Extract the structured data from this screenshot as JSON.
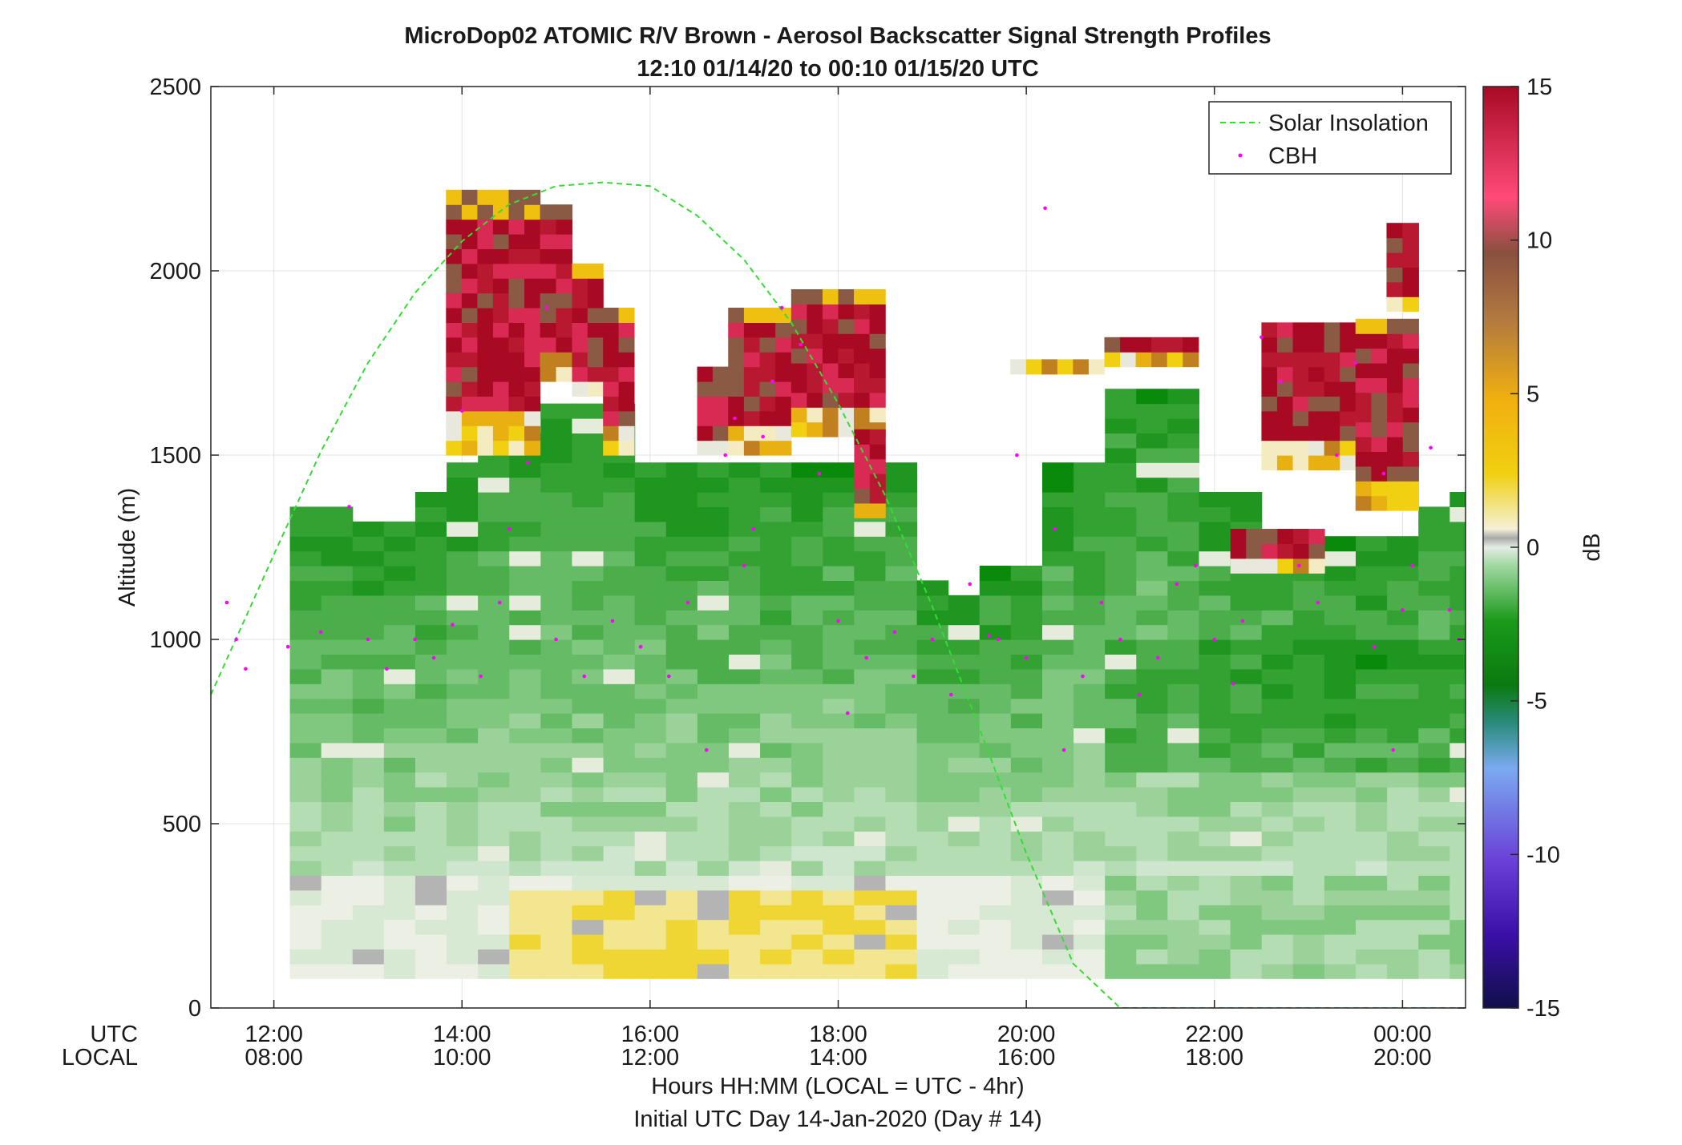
{
  "chart_data": {
    "type": "heatmap",
    "title": "MicroDop02 ATOMIC R/V Brown - Aerosol Backscatter Signal Strength Profiles",
    "subtitle": "12:10 01/14/20 to 00:10 01/15/20  UTC",
    "ylabel": "Altitude (m)",
    "ylim": [
      0,
      2500
    ],
    "yticks": [
      "0",
      "500",
      "1000",
      "1500",
      "2000",
      "2500"
    ],
    "xlim_hours_utc": [
      11.33,
      24.67
    ],
    "xtick_labels_utc": [
      "12:00",
      "14:00",
      "16:00",
      "18:00",
      "20:00",
      "22:00",
      "00:00"
    ],
    "xtick_labels_local": [
      "08:00",
      "10:00",
      "12:00",
      "14:00",
      "16:00",
      "18:00",
      "20:00"
    ],
    "xaxis_row_labels": [
      "UTC",
      "LOCAL"
    ],
    "xlabel_line1": "Hours HH:MM  (LOCAL = UTC - 4hr)",
    "xlabel_line2": "Initial UTC Day 14-Jan-2020 (Day # 14)",
    "grid": true,
    "legend": {
      "placement": "top-right",
      "entries": [
        "Solar Insolation",
        "CBH"
      ]
    },
    "colorbar": {
      "label": "dB",
      "range": [
        -15,
        15
      ],
      "ticks": [
        "-15",
        "-10",
        "-5",
        "0",
        "5",
        "10",
        "15"
      ]
    },
    "profile_columns": {
      "start_hour_utc": 12.17,
      "step_hours": 0.3333,
      "bottom_altitude_m": 80,
      "cell_height_m": 40,
      "top_altitude_m": [
        1350,
        1350,
        1320,
        1320,
        1400,
        1450,
        1620,
        1620,
        1620,
        1620,
        1620,
        1480,
        1480,
        1480,
        1480,
        1480,
        1480,
        1480,
        1480,
        1480,
        1140,
        1120,
        1180,
        1180,
        1450,
        1480,
        1680,
        1680,
        1680,
        1380,
        1380,
        1280,
        1280,
        1280,
        1280,
        1280,
        1350,
        1380,
        1330
      ]
    },
    "upper_cloud_layers": [
      {
        "x0": 13.83,
        "x1": 14.83,
        "bottom_m": 1500,
        "top_m": 2190
      },
      {
        "x0": 14.83,
        "x1": 15.17,
        "bottom_m": 1700,
        "top_m": 2160
      },
      {
        "x0": 15.17,
        "x1": 15.5,
        "bottom_m": 1660,
        "top_m": 1990
      },
      {
        "x0": 15.5,
        "x1": 15.83,
        "bottom_m": 1500,
        "top_m": 1890
      },
      {
        "x0": 16.5,
        "x1": 16.83,
        "bottom_m": 1500,
        "top_m": 1730
      },
      {
        "x0": 16.83,
        "x1": 17.5,
        "bottom_m": 1500,
        "top_m": 1890
      },
      {
        "x0": 17.5,
        "x1": 18.5,
        "bottom_m": 1550,
        "top_m": 1920
      },
      {
        "x0": 18.17,
        "x1": 18.5,
        "bottom_m": 1330,
        "top_m": 1560
      },
      {
        "x0": 19.83,
        "x1": 20.83,
        "bottom_m": 1720,
        "top_m": 1760
      },
      {
        "x0": 20.83,
        "x1": 21.83,
        "bottom_m": 1740,
        "top_m": 1820
      },
      {
        "x0": 23.83,
        "x1": 24.17,
        "bottom_m": 1890,
        "top_m": 2120
      },
      {
        "x0": 22.5,
        "x1": 23.5,
        "bottom_m": 1460,
        "top_m": 1860
      },
      {
        "x0": 23.5,
        "x1": 24.17,
        "bottom_m": 1350,
        "top_m": 1850
      },
      {
        "x0": 22.17,
        "x1": 23.17,
        "bottom_m": 1180,
        "top_m": 1280
      }
    ],
    "solar_insolation": {
      "x": [
        11.33,
        12.0,
        12.5,
        13.0,
        13.5,
        14.0,
        14.5,
        15.0,
        15.5,
        16.0,
        16.5,
        17.0,
        17.5,
        18.0,
        18.5,
        19.0,
        19.5,
        20.0,
        20.5,
        21.0,
        21.25,
        22.0,
        23.0,
        24.0,
        24.67
      ],
      "y": [
        850,
        1230,
        1510,
        1750,
        1940,
        2080,
        2180,
        2230,
        2240,
        2230,
        2150,
        2030,
        1860,
        1640,
        1390,
        1090,
        760,
        420,
        120,
        0,
        0,
        0,
        0,
        0,
        0
      ]
    },
    "cbh": {
      "x": [
        11.5,
        11.6,
        11.7,
        12.15,
        12.5,
        12.8,
        13.0,
        13.2,
        13.5,
        13.7,
        13.9,
        14.0,
        14.2,
        14.4,
        14.5,
        14.7,
        14.9,
        15.0,
        15.3,
        15.6,
        15.9,
        16.2,
        16.4,
        16.6,
        16.8,
        16.9,
        17.0,
        17.1,
        17.2,
        17.3,
        17.4,
        17.6,
        17.8,
        18.0,
        18.1,
        18.3,
        18.6,
        18.8,
        19.0,
        19.2,
        19.4,
        19.6,
        19.7,
        19.9,
        20.0,
        20.2,
        20.3,
        20.4,
        20.6,
        20.8,
        21.0,
        21.2,
        21.4,
        21.6,
        21.8,
        22.0,
        22.2,
        22.3,
        22.5,
        22.7,
        22.9,
        23.1,
        23.3,
        23.5,
        23.7,
        23.8,
        23.9,
        24.0,
        24.1,
        24.3,
        24.5,
        24.6
      ],
      "y": [
        1100,
        1000,
        920,
        980,
        1020,
        1360,
        1000,
        920,
        1000,
        950,
        1040,
        1620,
        900,
        1100,
        1300,
        1480,
        1900,
        1000,
        900,
        1050,
        980,
        900,
        1100,
        700,
        1500,
        1600,
        1200,
        1300,
        1550,
        1700,
        1900,
        1800,
        1450,
        1050,
        800,
        950,
        1020,
        900,
        1000,
        850,
        1150,
        1010,
        1000,
        1500,
        950,
        2170,
        1300,
        700,
        900,
        1100,
        1000,
        850,
        950,
        1150,
        1200,
        1000,
        880,
        1050,
        1820,
        1700,
        1200,
        1100,
        1500,
        1750,
        980,
        1450,
        700,
        1080,
        1200,
        1520,
        1080,
        1000
      ]
    }
  }
}
